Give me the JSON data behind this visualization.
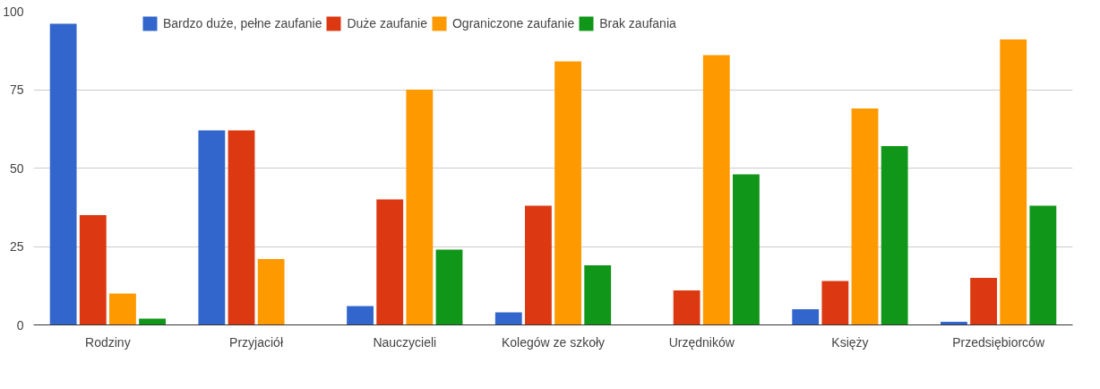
{
  "chart_data": {
    "type": "bar",
    "categories": [
      "Rodziny",
      "Przyjaciół",
      "Nauczycieli",
      "Kolegów ze szkoły",
      "Urzędników",
      "Księży",
      "Przedsiębiorców"
    ],
    "series": [
      {
        "name": "Bardzo duże, pełne zaufanie",
        "color": "#3366cc",
        "values": [
          96,
          62,
          6,
          4,
          0,
          5,
          1
        ]
      },
      {
        "name": "Duże zaufanie",
        "color": "#dc3912",
        "values": [
          35,
          62,
          40,
          38,
          11,
          14,
          15
        ]
      },
      {
        "name": "Ograniczone zaufanie",
        "color": "#ff9900",
        "values": [
          10,
          21,
          75,
          84,
          86,
          69,
          91
        ]
      },
      {
        "name": "Brak zaufania",
        "color": "#109618",
        "values": [
          2,
          0,
          24,
          19,
          48,
          57,
          38
        ]
      }
    ],
    "ylim": [
      0,
      100
    ],
    "yticks": [
      0,
      25,
      50,
      75,
      100
    ],
    "grid": "y",
    "legend": "top"
  }
}
